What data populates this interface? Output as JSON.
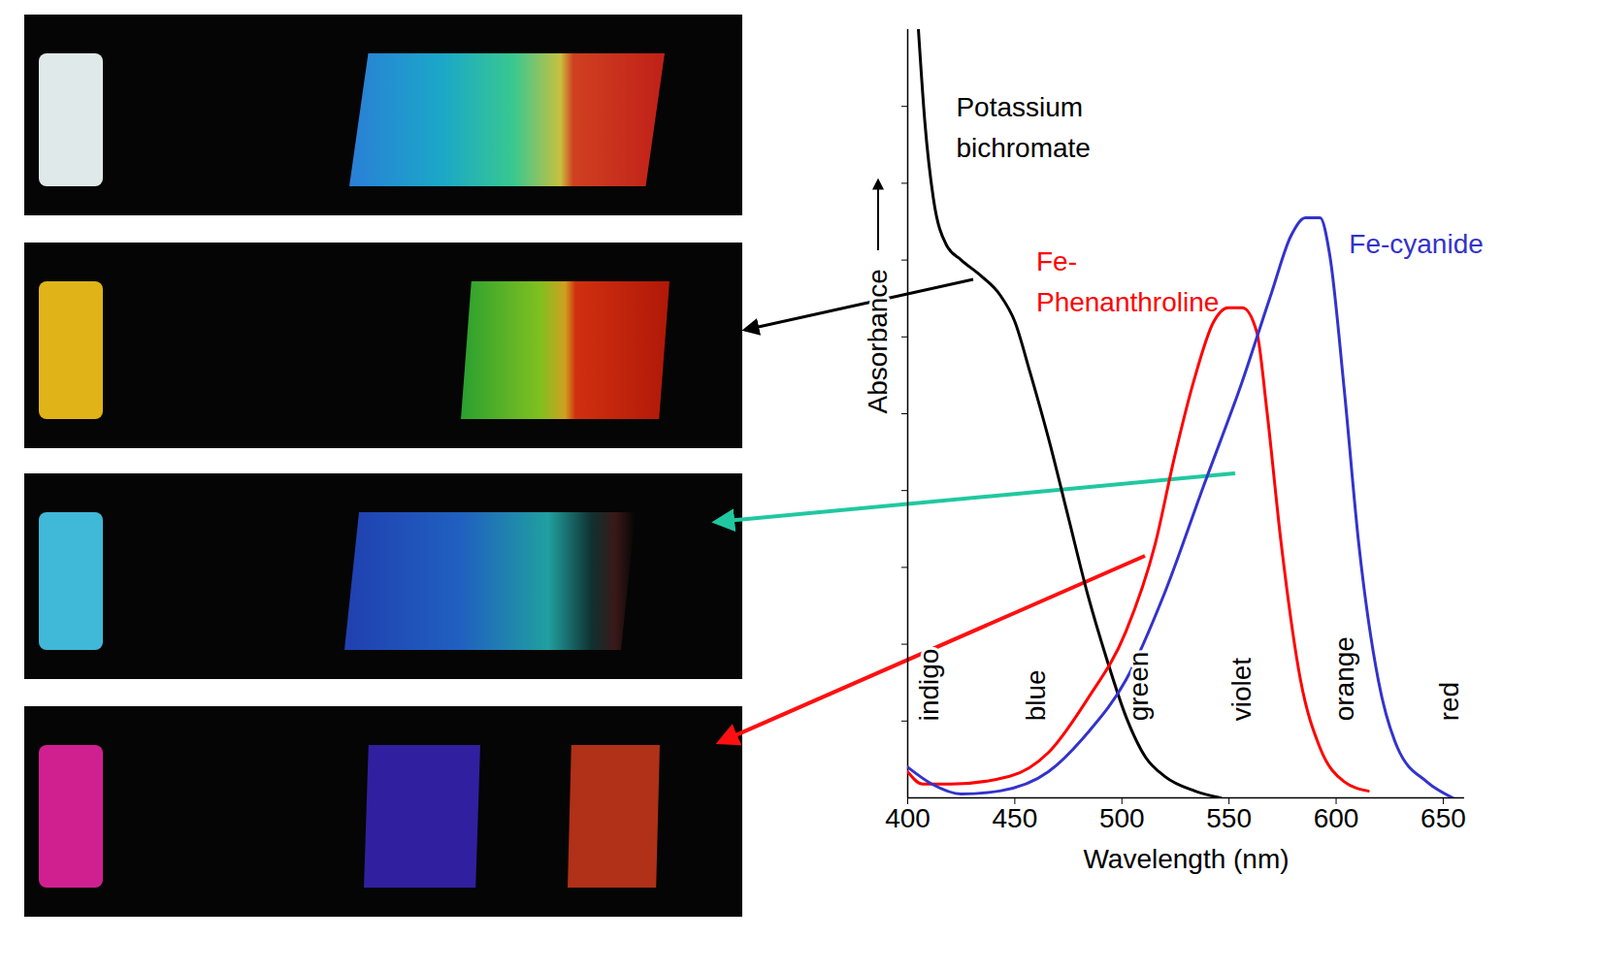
{
  "chart_data": {
    "type": "line",
    "xlabel": "Wavelength (nm)",
    "ylabel": "Absorbance",
    "xlim": [
      400,
      660
    ],
    "xticks": [
      400,
      450,
      500,
      550,
      600,
      650
    ],
    "ylim": [
      0,
      10
    ],
    "yticks": [
      1,
      2,
      3,
      4,
      5,
      6,
      7,
      8,
      9
    ],
    "tick_labels": "x",
    "grid": false,
    "series": [
      {
        "name": "Potassium bichromate",
        "color": "#000000",
        "label_x": 422.6,
        "label_y": 8.78,
        "x": [
          405,
          408,
          412,
          418,
          425,
          434,
          443,
          450,
          457,
          466,
          475,
          484,
          493,
          502,
          511,
          520,
          534,
          546
        ],
        "values": [
          10,
          8.8,
          7.8,
          7.2,
          7.0,
          6.8,
          6.55,
          6.2,
          5.55,
          4.65,
          3.65,
          2.65,
          1.8,
          1.05,
          0.53,
          0.28,
          0.09,
          0
        ]
      },
      {
        "name": "Fe-Phenanthroline",
        "color": "#ff0000",
        "label_x": 460,
        "label_y": 6.77,
        "x": [
          400,
          407,
          420,
          447.6,
          465.7,
          483.8,
          501.8,
          515.5,
          524.5,
          533.6,
          542.7,
          549.5,
          556.3,
          563,
          567.6,
          574.4,
          583.4,
          592.5,
          603.8,
          615
        ],
        "values": [
          0.34,
          0.18,
          0.18,
          0.28,
          0.59,
          1.28,
          2.16,
          3.3,
          4.43,
          5.43,
          6.19,
          6.38,
          6.38,
          6.06,
          5.06,
          3.3,
          1.53,
          0.65,
          0.21,
          0.09
        ]
      },
      {
        "name": "Fe-cyanide",
        "color": "#3333cc",
        "label_x": 606,
        "label_y": 7.26,
        "x": [
          400,
          411.3,
          425,
          443,
          465.7,
          483.8,
          501.8,
          520,
          538,
          556.3,
          569.8,
          579,
          585.7,
          592.5,
          597,
          603.8,
          610.6,
          619.7,
          628.7,
          642.3,
          654.5
        ],
        "values": [
          0.4,
          0.18,
          0.05,
          0.09,
          0.34,
          0.84,
          1.53,
          2.67,
          4.05,
          5.43,
          6.57,
          7.32,
          7.55,
          7.55,
          7.07,
          5.31,
          3.3,
          1.53,
          0.65,
          0.21,
          0
        ]
      }
    ],
    "annotations": [
      {
        "text": "indigo",
        "x": 410,
        "y": 1
      },
      {
        "text": "blue",
        "x": 460,
        "y": 1
      },
      {
        "text": "green",
        "x": 508,
        "y": 1
      },
      {
        "text": "violet",
        "x": 556,
        "y": 1
      },
      {
        "text": "orange",
        "x": 604,
        "y": 1
      },
      {
        "text": "red",
        "x": 653,
        "y": 1
      }
    ]
  }
}
